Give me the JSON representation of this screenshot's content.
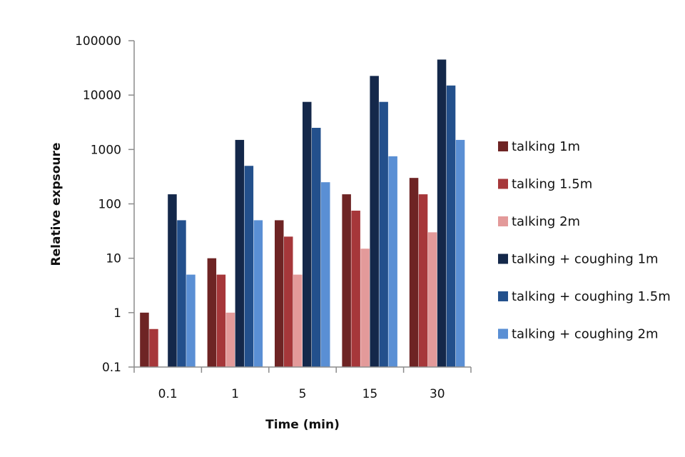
{
  "chart_data": {
    "type": "bar",
    "title": "",
    "xlabel": "Time (min)",
    "ylabel": "Relative expsoure",
    "yscale": "log",
    "ylim": [
      0.1,
      100000
    ],
    "yticks": [
      "0.1",
      "1",
      "10",
      "100",
      "1000",
      "10000",
      "100000"
    ],
    "grid": false,
    "legend_position": "right",
    "categories": [
      "0.1",
      "1",
      "5",
      "15",
      "30"
    ],
    "series": [
      {
        "name": "talking 1m",
        "color": "#6e2424",
        "values": [
          1,
          10,
          50,
          150,
          300
        ]
      },
      {
        "name": "talking 1.5m",
        "color": "#a6373a",
        "values": [
          0.5,
          5,
          25,
          75,
          150
        ]
      },
      {
        "name": "talking 2m",
        "color": "#e39a9a",
        "values": [
          0.1,
          1,
          5,
          15,
          30
        ]
      },
      {
        "name": "talking + coughing 1m",
        "color": "#14284a",
        "values": [
          150,
          1500,
          7500,
          22500,
          45000
        ]
      },
      {
        "name": "talking + coughing 1.5m",
        "color": "#23508c",
        "values": [
          50,
          500,
          2500,
          7500,
          15000
        ]
      },
      {
        "name": "talking + coughing 2m",
        "color": "#5a8fd4",
        "values": [
          5,
          50,
          250,
          750,
          1500
        ]
      }
    ]
  }
}
